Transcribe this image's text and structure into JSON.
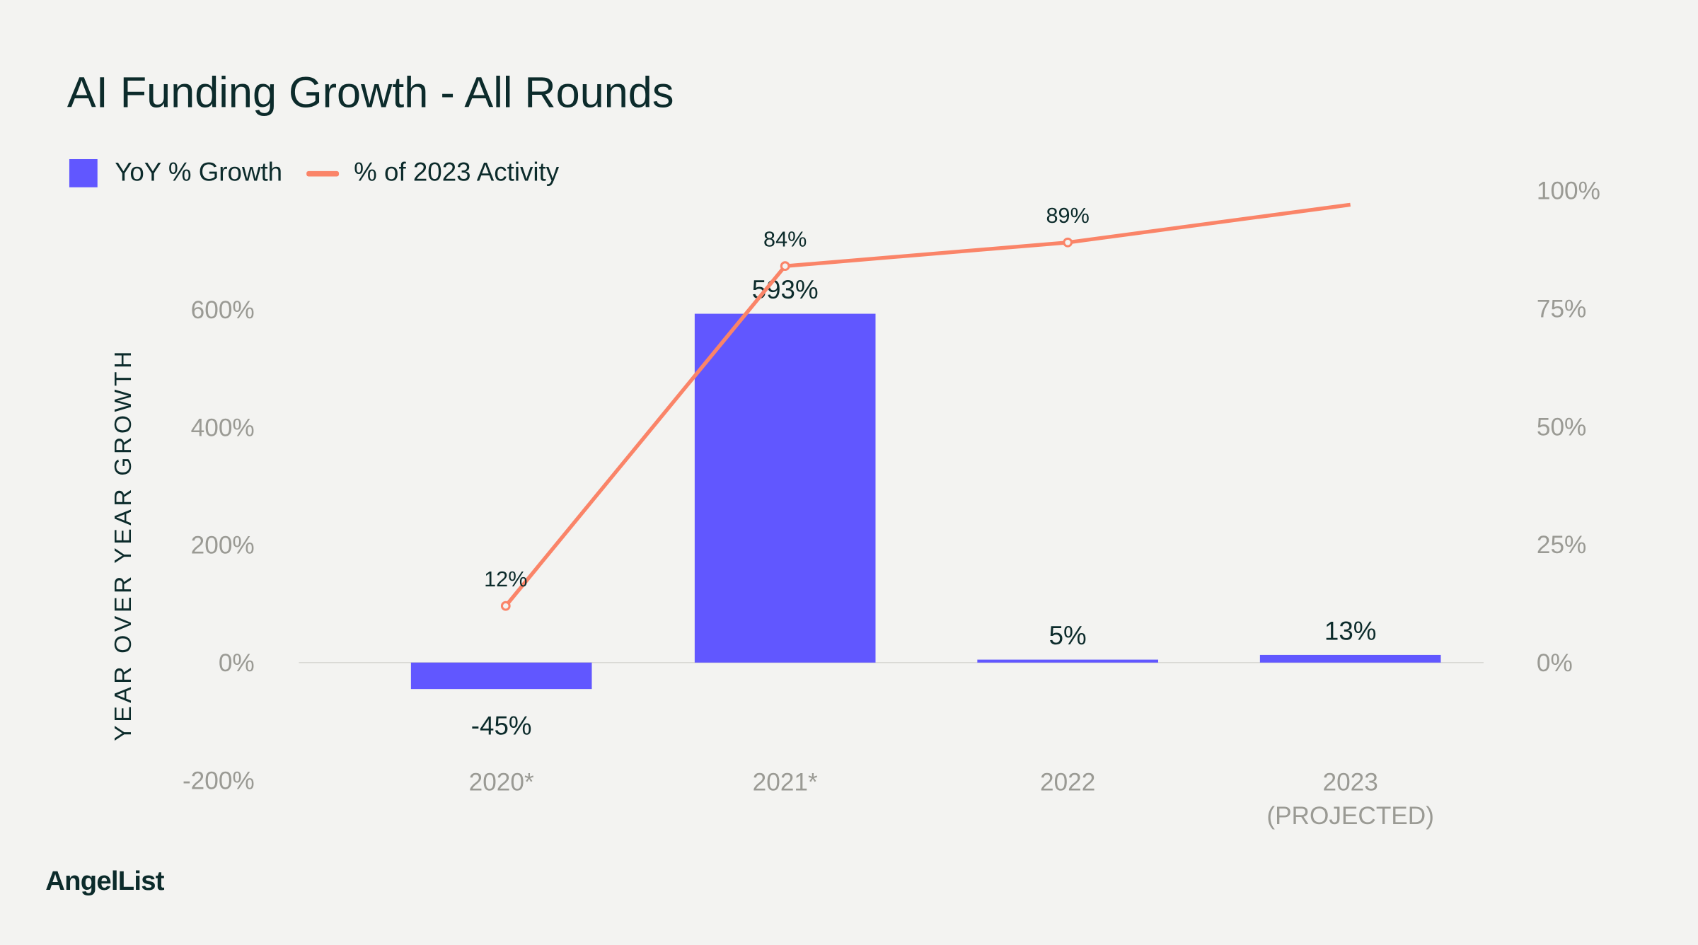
{
  "chart_data": {
    "type": "bar",
    "title": "AI Funding Growth - All Rounds",
    "categories": [
      "2020*",
      "2021*",
      [
        "2022"
      ],
      [
        "2023",
        "(PROJECTED)"
      ]
    ],
    "category_labels": [
      [
        "2020*"
      ],
      [
        "2021*"
      ],
      [
        "2022"
      ],
      [
        "2023",
        "(PROJECTED)"
      ]
    ],
    "ylabel": "YEAR OVER YEAR GROWTH",
    "ylim": [
      -200,
      600
    ],
    "yticks": [
      "-200%",
      "0%",
      "200%",
      "400%",
      "600%"
    ],
    "ytick_values": [
      -200,
      0,
      200,
      400,
      600
    ],
    "y2lim": [
      0,
      100
    ],
    "y2ticks": [
      "0%",
      "25%",
      "50%",
      "75%",
      "100%"
    ],
    "y2tick_values": [
      0,
      25,
      50,
      75,
      100
    ],
    "legend_position": "top-left",
    "grid": false,
    "series": [
      {
        "name": "YoY % Growth",
        "kind": "bar",
        "axis": "left",
        "color": "#6157ff",
        "values": [
          -45,
          593,
          5,
          13
        ],
        "labels": [
          "-45%",
          "593%",
          "5%",
          "13%"
        ]
      },
      {
        "name": "% of 2023 Activity",
        "kind": "line",
        "axis": "right",
        "color": "#fa8468",
        "values": [
          12,
          84,
          89,
          97
        ],
        "labels": [
          "12%",
          "84%",
          "89%",
          ""
        ]
      }
    ]
  },
  "brand": "AngelList",
  "colors": {
    "background": "#f3f3f1",
    "text": "#0c2b2b",
    "tick": "#9a9a94"
  }
}
